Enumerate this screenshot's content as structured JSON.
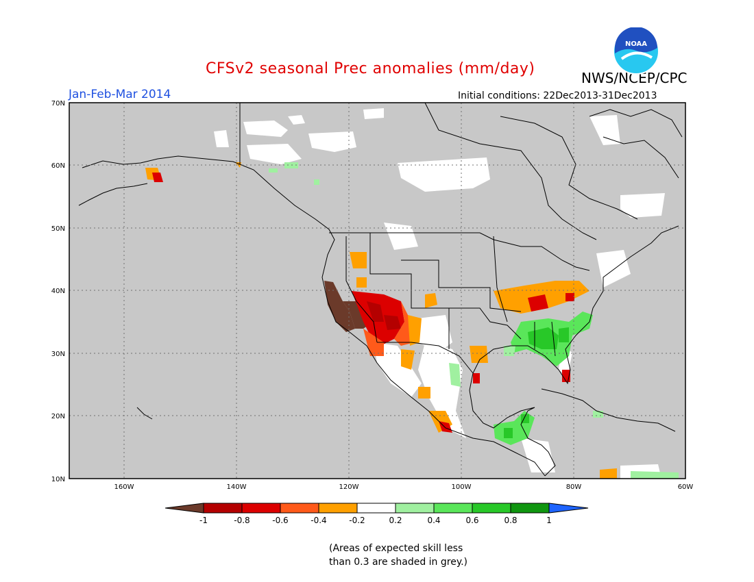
{
  "header": {
    "title": "CFSv2 seasonal Prec anomalies (mm/day)",
    "agency": "NWS/NCEP/CPC",
    "logo_text": "NOAA",
    "period": "Jan-Feb-Mar 2014",
    "initial_conditions": "Initial conditions: 22Dec2013-31Dec2013"
  },
  "map": {
    "lat_labels": [
      "70N",
      "60N",
      "50N",
      "40N",
      "30N",
      "20N",
      "10N"
    ],
    "lon_labels": [
      "160W",
      "140W",
      "120W",
      "100W",
      "80W",
      "60W"
    ],
    "grey_meaning": "low skill"
  },
  "legend": {
    "tick_labels": [
      "-1",
      "-0.8",
      "-0.6",
      "-0.4",
      "-0.2",
      "0.2",
      "0.4",
      "0.6",
      "0.8",
      "1"
    ],
    "colors": [
      "#6b3a2a",
      "#b40000",
      "#dc0000",
      "#ff5a1a",
      "#ffa000",
      "#ffffff",
      "#a0f0a0",
      "#5ae65a",
      "#28c828",
      "#109610",
      "#1e64ff"
    ]
  },
  "colors": {
    "title": "#e00000",
    "period": "#1e50e0",
    "grey": "#c8c8c8",
    "noaa_blue": "#2050c0",
    "noaa_cyan": "#28c8f0"
  },
  "footnote": {
    "line1": "(Areas of expected skill less",
    "line2": "than 0.3 are shaded in grey.)"
  }
}
